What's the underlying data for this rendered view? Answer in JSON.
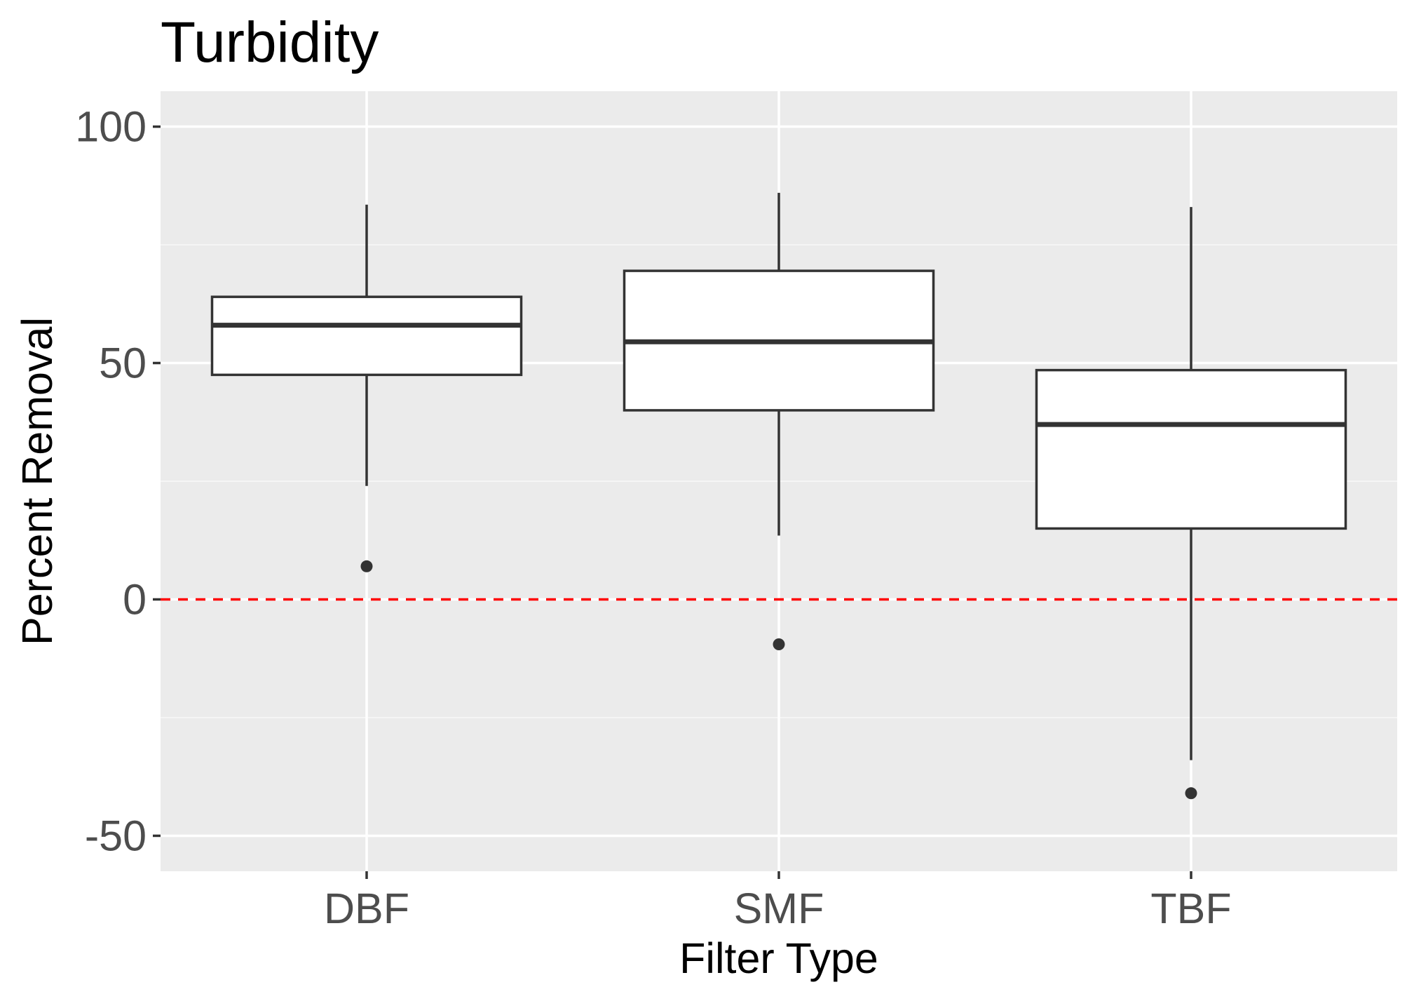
{
  "chart_data": {
    "type": "box",
    "title": "Turbidity",
    "xlabel": "Filter Type",
    "ylabel": "Percent Removal",
    "categories": [
      "DBF",
      "SMF",
      "TBF"
    ],
    "boxes": [
      {
        "category": "DBF",
        "whisker_low": 24,
        "q1": 47.5,
        "median": 58,
        "q3": 64,
        "whisker_high": 83.5,
        "outliers": [
          7
        ]
      },
      {
        "category": "SMF",
        "whisker_low": 13.5,
        "q1": 40,
        "median": 54.5,
        "q3": 69.5,
        "whisker_high": 86,
        "outliers": [
          -9.5
        ]
      },
      {
        "category": "TBF",
        "whisker_low": -34,
        "q1": 15,
        "median": 37,
        "q3": 48.5,
        "whisker_high": 83,
        "outliers": [
          -41
        ]
      }
    ],
    "ylim": [
      -57.5,
      107.5
    ],
    "y_ticks": [
      -50,
      0,
      50,
      100
    ],
    "y_tick_labels": [
      "-50",
      "0",
      "50",
      "100"
    ],
    "reference_line": {
      "y": 0,
      "style": "dashed",
      "color": "#ff0000"
    },
    "grid": true,
    "legend": "none",
    "colors": {
      "panel_background": "#ebebeb",
      "grid_major": "#ffffff",
      "grid_minor": "#f5f5f5",
      "box_fill": "#ffffff",
      "box_stroke": "#333333",
      "tick_text": "#4d4d4d",
      "tick_mark": "#333333",
      "title_text": "#000000"
    }
  }
}
